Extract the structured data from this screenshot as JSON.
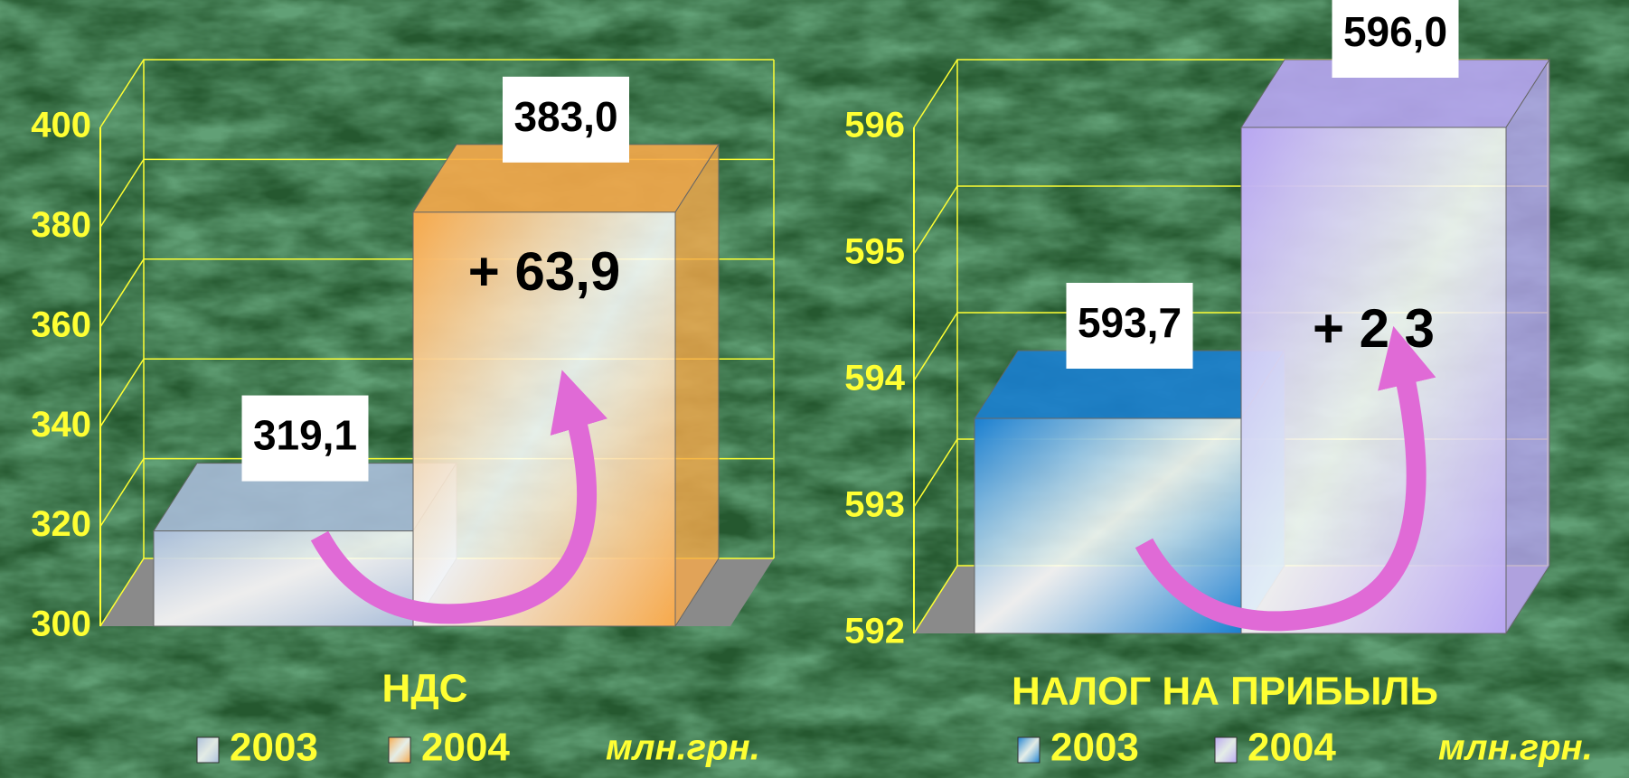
{
  "chart_data": [
    {
      "type": "bar3d",
      "title": "НДС",
      "categories": [
        "2003",
        "2004"
      ],
      "values": [
        319.1,
        383.0
      ],
      "value_labels": [
        "319,1",
        "383,0"
      ],
      "colors": [
        "#a9bdd9",
        "#f6a94b"
      ],
      "annotation": "+ 63,9",
      "unit": "млн.грн.",
      "ylim": [
        300,
        400
      ],
      "yticks": [
        300,
        320,
        340,
        360,
        380,
        400
      ],
      "grid": true
    },
    {
      "type": "bar3d",
      "title": "НАЛОГ НА ПРИБЫЛЬ",
      "categories": [
        "2003",
        "2004"
      ],
      "values": [
        593.7,
        596.0
      ],
      "value_labels": [
        "593,7",
        "596,0"
      ],
      "colors": [
        "#1a7fd0",
        "#b8a6f2"
      ],
      "annotation": "+ 2,3",
      "unit": "млн.грн.",
      "ylim": [
        592,
        596
      ],
      "yticks": [
        592,
        593,
        594,
        595,
        596
      ],
      "grid": true
    }
  ]
}
